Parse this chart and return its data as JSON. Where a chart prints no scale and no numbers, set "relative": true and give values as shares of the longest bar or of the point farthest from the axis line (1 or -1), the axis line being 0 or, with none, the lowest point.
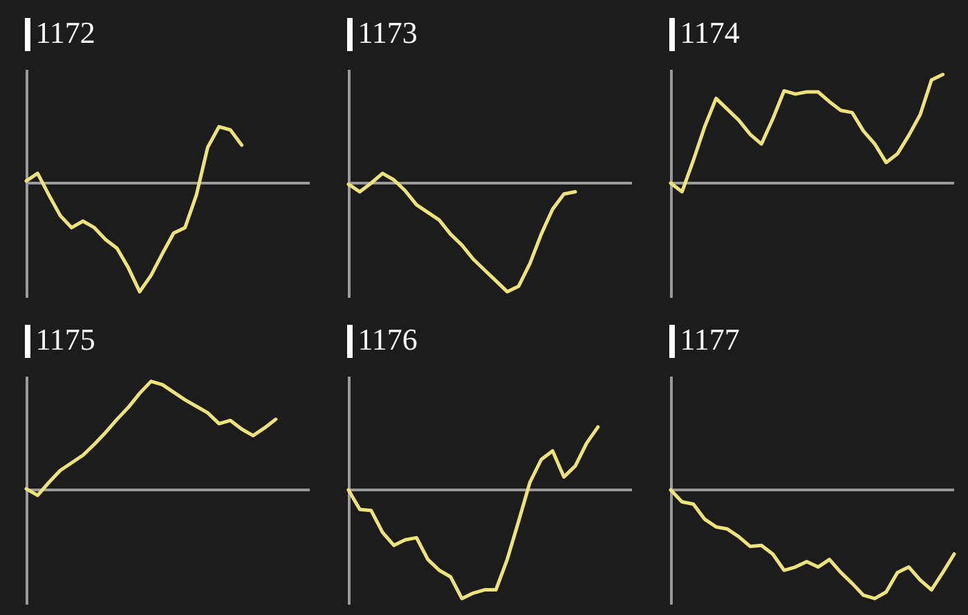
{
  "chart_data": [
    {
      "type": "line",
      "title": "1172",
      "relative": true,
      "color": "#eee27a",
      "categories": [
        null,
        null,
        null,
        null,
        null,
        null,
        null,
        null,
        null,
        null,
        null,
        null,
        null,
        null,
        null,
        null,
        null,
        null,
        null,
        null,
        null,
        null,
        null,
        null,
        null,
        null
      ],
      "values": [
        0.02,
        0.09,
        -0.11,
        -0.3,
        -0.41,
        -0.35,
        -0.41,
        -0.52,
        -0.6,
        -0.78,
        -1,
        -0.85,
        -0.65,
        -0.46,
        -0.41,
        -0.11,
        0.33,
        0.52,
        0.49,
        0.35,
        null,
        null,
        null,
        null,
        null,
        null
      ]
    },
    {
      "type": "line",
      "title": "1173",
      "relative": true,
      "color": "#eee27a",
      "categories": [
        null,
        null,
        null,
        null,
        null,
        null,
        null,
        null,
        null,
        null,
        null,
        null,
        null,
        null,
        null,
        null,
        null,
        null,
        null,
        null,
        null,
        null,
        null,
        null,
        null,
        null
      ],
      "values": [
        -0.01,
        -0.08,
        0,
        0.09,
        0.03,
        -0.07,
        -0.2,
        -0.27,
        -0.34,
        -0.47,
        -0.57,
        -0.7,
        -0.8,
        -0.9,
        -1,
        -0.95,
        -0.74,
        -0.47,
        -0.24,
        -0.1,
        -0.08,
        null,
        null,
        null,
        null,
        null
      ]
    },
    {
      "type": "line",
      "title": "1174",
      "relative": true,
      "color": "#eee27a",
      "categories": [
        null,
        null,
        null,
        null,
        null,
        null,
        null,
        null,
        null,
        null,
        null,
        null,
        null,
        null,
        null,
        null,
        null,
        null,
        null,
        null,
        null,
        null,
        null,
        null,
        null,
        null
      ],
      "values": [
        0,
        -0.08,
        0.21,
        0.52,
        0.78,
        0.68,
        0.58,
        0.45,
        0.36,
        0.59,
        0.85,
        0.82,
        0.84,
        0.84,
        0.75,
        0.67,
        0.65,
        0.48,
        0.36,
        0.19,
        0.27,
        0.44,
        0.63,
        0.95,
        1,
        null
      ]
    },
    {
      "type": "line",
      "title": "1175",
      "relative": true,
      "color": "#eee27a",
      "categories": [
        null,
        null,
        null,
        null,
        null,
        null,
        null,
        null,
        null,
        null,
        null,
        null,
        null,
        null,
        null,
        null,
        null,
        null,
        null,
        null,
        null,
        null,
        null,
        null,
        null,
        null
      ],
      "values": [
        0.01,
        -0.05,
        0.07,
        0.18,
        0.25,
        0.32,
        0.42,
        0.53,
        0.65,
        0.76,
        0.89,
        1,
        0.97,
        0.9,
        0.83,
        0.77,
        0.71,
        0.61,
        0.64,
        0.56,
        0.5,
        0.57,
        0.65,
        null,
        null,
        null
      ]
    },
    {
      "type": "line",
      "title": "1176",
      "relative": true,
      "color": "#eee27a",
      "categories": [
        null,
        null,
        null,
        null,
        null,
        null,
        null,
        null,
        null,
        null,
        null,
        null,
        null,
        null,
        null,
        null,
        null,
        null,
        null,
        null,
        null,
        null,
        null,
        null,
        null,
        null
      ],
      "values": [
        0,
        -0.18,
        -0.19,
        -0.39,
        -0.51,
        -0.46,
        -0.44,
        -0.64,
        -0.74,
        -0.8,
        -1,
        -0.95,
        -0.92,
        -0.92,
        -0.64,
        -0.29,
        0.07,
        0.28,
        0.36,
        0.12,
        0.22,
        0.43,
        0.58,
        null,
        null,
        null
      ]
    },
    {
      "type": "line",
      "title": "1177",
      "relative": true,
      "color": "#eee27a",
      "categories": [
        null,
        null,
        null,
        null,
        null,
        null,
        null,
        null,
        null,
        null,
        null,
        null,
        null,
        null,
        null,
        null,
        null,
        null,
        null,
        null,
        null,
        null,
        null,
        null,
        null,
        null
      ],
      "values": [
        0,
        -0.11,
        -0.13,
        -0.27,
        -0.34,
        -0.36,
        -0.43,
        -0.52,
        -0.51,
        -0.59,
        -0.74,
        -0.71,
        -0.66,
        -0.71,
        -0.64,
        -0.76,
        -0.86,
        -0.97,
        -1,
        -0.94,
        -0.76,
        -0.71,
        -0.83,
        -0.92,
        -0.76,
        -0.59
      ]
    }
  ]
}
